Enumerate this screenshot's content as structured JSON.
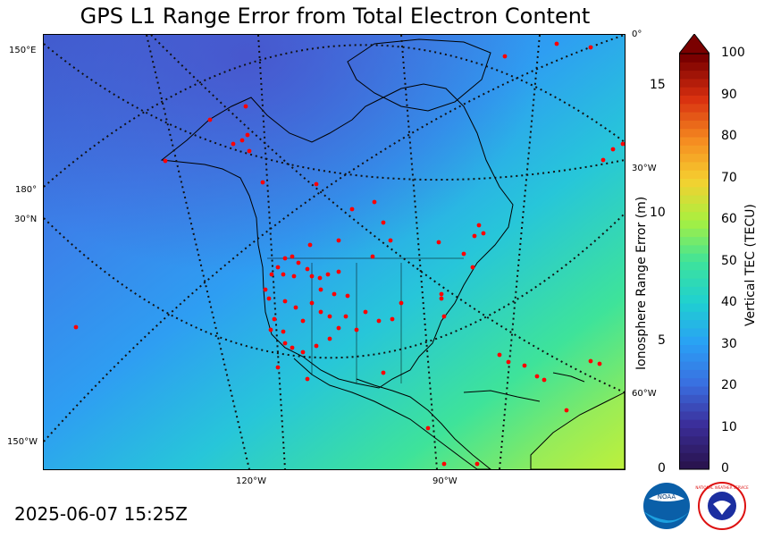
{
  "title": "GPS L1 Range Error from Total Electron Content",
  "timestamp": "2025-06-07 15:25Z",
  "map": {
    "graticule_labels": {
      "lon_150E": "150°E",
      "lon_180": "180°",
      "lat_30N": "30°N",
      "lon_150W": "150°W",
      "lon_0": "0°",
      "lon_30W": "30°W",
      "lon_60W": "60°W",
      "lon_120W": "120°W",
      "lon_90W": "90°W"
    },
    "colors": {
      "ocean_low": "#3a6fd8",
      "ocean_mid": "#2d9bf0",
      "ocean_high": "#33e0a8",
      "land_outline": "#000000",
      "station": "#ff0000"
    }
  },
  "colorbar": {
    "range_error_label": "Ionosphere Range Error (m)",
    "tec_label": "Vertical TEC (TECU)",
    "range_error_ticks": [
      "0",
      "5",
      "10",
      "15"
    ],
    "tec_ticks": [
      "0",
      "10",
      "20",
      "30",
      "40",
      "50",
      "60",
      "70",
      "80",
      "90",
      "100"
    ]
  },
  "logos": {
    "noaa": "NOAA",
    "nws": "NATIONAL WEATHER SERVICE"
  }
}
